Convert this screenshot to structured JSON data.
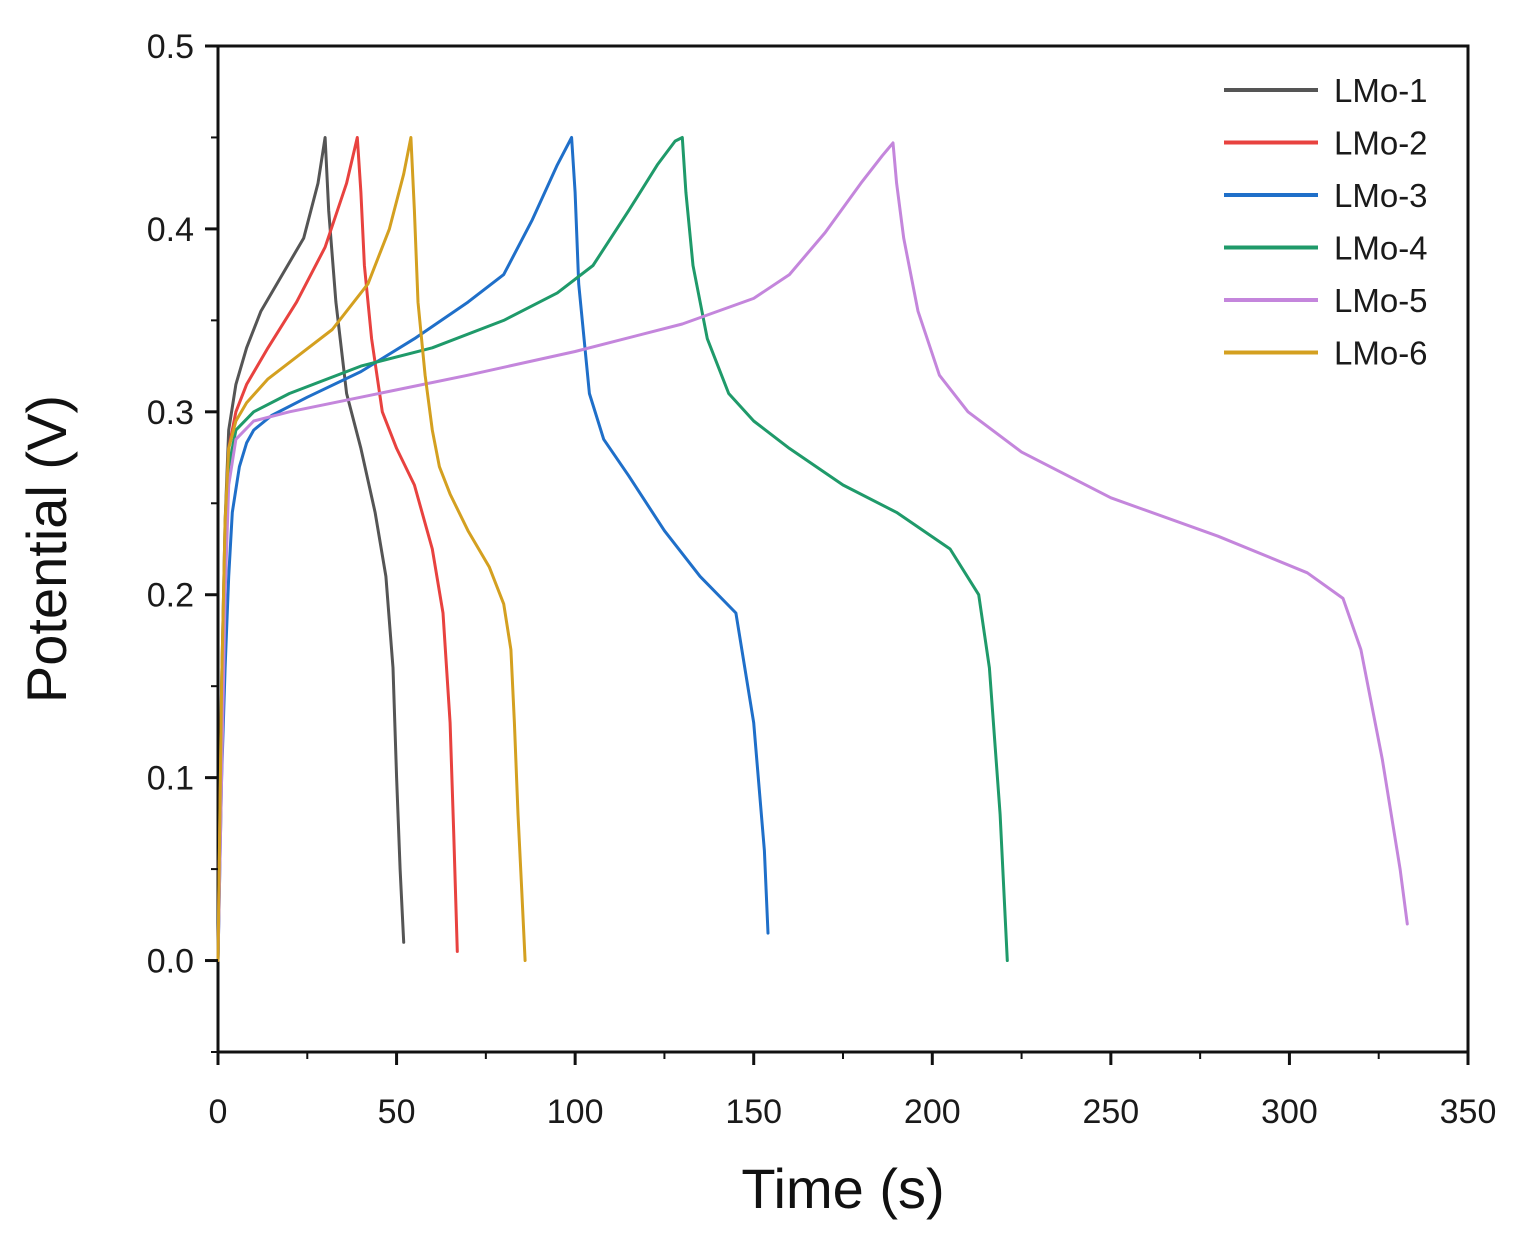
{
  "chart_data": {
    "type": "line",
    "title": "",
    "xlabel": "Time (s)",
    "ylabel": "Potential (V)",
    "xlim": [
      0,
      350
    ],
    "ylim": [
      -0.05,
      0.5
    ],
    "xticks": [
      0,
      50,
      100,
      150,
      200,
      250,
      300,
      350
    ],
    "xtick_labels": [
      "0",
      "50",
      "100",
      "150",
      "200",
      "250",
      "300",
      "350"
    ],
    "yticks": [
      0.0,
      0.1,
      0.2,
      0.3,
      0.4,
      0.5
    ],
    "ytick_labels": [
      "0.0",
      "0.1",
      "0.2",
      "0.3",
      "0.4",
      "0.5"
    ],
    "grid": false,
    "legend_position": "top-right",
    "series": [
      {
        "name": "LMo-1",
        "color": "#555555",
        "x": [
          0,
          1,
          2,
          3,
          5,
          8,
          12,
          18,
          24,
          28,
          30,
          31,
          33,
          36,
          40,
          44,
          47,
          49,
          50,
          51,
          52
        ],
        "y": [
          0.0,
          0.15,
          0.24,
          0.29,
          0.315,
          0.335,
          0.355,
          0.375,
          0.395,
          0.425,
          0.45,
          0.41,
          0.36,
          0.31,
          0.28,
          0.245,
          0.21,
          0.16,
          0.1,
          0.05,
          0.01
        ]
      },
      {
        "name": "LMo-2",
        "color": "#e8423f",
        "x": [
          0,
          1,
          2,
          3,
          5,
          8,
          14,
          22,
          30,
          36,
          39,
          40,
          41,
          43,
          46,
          50,
          55,
          60,
          63,
          65,
          66,
          67
        ],
        "y": [
          0.0,
          0.14,
          0.23,
          0.28,
          0.3,
          0.315,
          0.335,
          0.36,
          0.39,
          0.425,
          0.45,
          0.42,
          0.38,
          0.34,
          0.3,
          0.28,
          0.26,
          0.225,
          0.19,
          0.13,
          0.07,
          0.005
        ]
      },
      {
        "name": "LMo-3",
        "color": "#1f6fc9",
        "x": [
          0,
          1,
          2,
          3,
          4,
          6,
          8,
          10,
          15,
          25,
          40,
          55,
          70,
          80,
          88,
          95,
          99,
          100,
          101,
          104,
          108,
          115,
          125,
          135,
          145,
          150,
          153,
          154
        ],
        "y": [
          0.0,
          0.1,
          0.16,
          0.21,
          0.245,
          0.27,
          0.283,
          0.29,
          0.298,
          0.308,
          0.322,
          0.34,
          0.36,
          0.375,
          0.405,
          0.435,
          0.45,
          0.42,
          0.37,
          0.31,
          0.285,
          0.265,
          0.235,
          0.21,
          0.19,
          0.13,
          0.06,
          0.015
        ]
      },
      {
        "name": "LMo-4",
        "color": "#1f9a6a",
        "x": [
          0,
          1,
          2,
          3,
          5,
          10,
          20,
          40,
          60,
          80,
          95,
          105,
          115,
          123,
          128,
          130,
          131,
          133,
          137,
          143,
          150,
          160,
          175,
          190,
          205,
          213,
          216,
          219,
          221
        ],
        "y": [
          0.0,
          0.12,
          0.22,
          0.27,
          0.29,
          0.3,
          0.31,
          0.325,
          0.335,
          0.35,
          0.365,
          0.38,
          0.41,
          0.435,
          0.448,
          0.45,
          0.42,
          0.38,
          0.34,
          0.31,
          0.295,
          0.28,
          0.26,
          0.245,
          0.225,
          0.2,
          0.16,
          0.08,
          0.0
        ]
      },
      {
        "name": "LMo-5",
        "color": "#c486dc",
        "x": [
          0,
          1,
          2,
          3,
          5,
          10,
          20,
          40,
          70,
          100,
          130,
          150,
          160,
          170,
          180,
          186,
          189,
          190,
          192,
          196,
          202,
          210,
          225,
          250,
          280,
          305,
          315,
          320,
          326,
          331,
          333
        ],
        "y": [
          0.0,
          0.1,
          0.2,
          0.26,
          0.285,
          0.295,
          0.3,
          0.308,
          0.32,
          0.333,
          0.348,
          0.362,
          0.375,
          0.398,
          0.425,
          0.44,
          0.447,
          0.425,
          0.395,
          0.355,
          0.32,
          0.3,
          0.278,
          0.253,
          0.232,
          0.212,
          0.198,
          0.17,
          0.11,
          0.05,
          0.02
        ]
      },
      {
        "name": "LMo-6",
        "color": "#d4a020",
        "x": [
          0,
          1,
          2,
          3,
          5,
          8,
          14,
          22,
          32,
          42,
          48,
          52,
          54,
          55,
          56,
          58,
          60,
          62,
          65,
          70,
          76,
          80,
          82,
          83,
          84,
          85,
          86
        ],
        "y": [
          0.0,
          0.15,
          0.24,
          0.28,
          0.295,
          0.305,
          0.318,
          0.33,
          0.345,
          0.37,
          0.4,
          0.43,
          0.45,
          0.41,
          0.36,
          0.32,
          0.29,
          0.27,
          0.255,
          0.235,
          0.215,
          0.195,
          0.17,
          0.13,
          0.08,
          0.04,
          0.0
        ]
      }
    ]
  }
}
